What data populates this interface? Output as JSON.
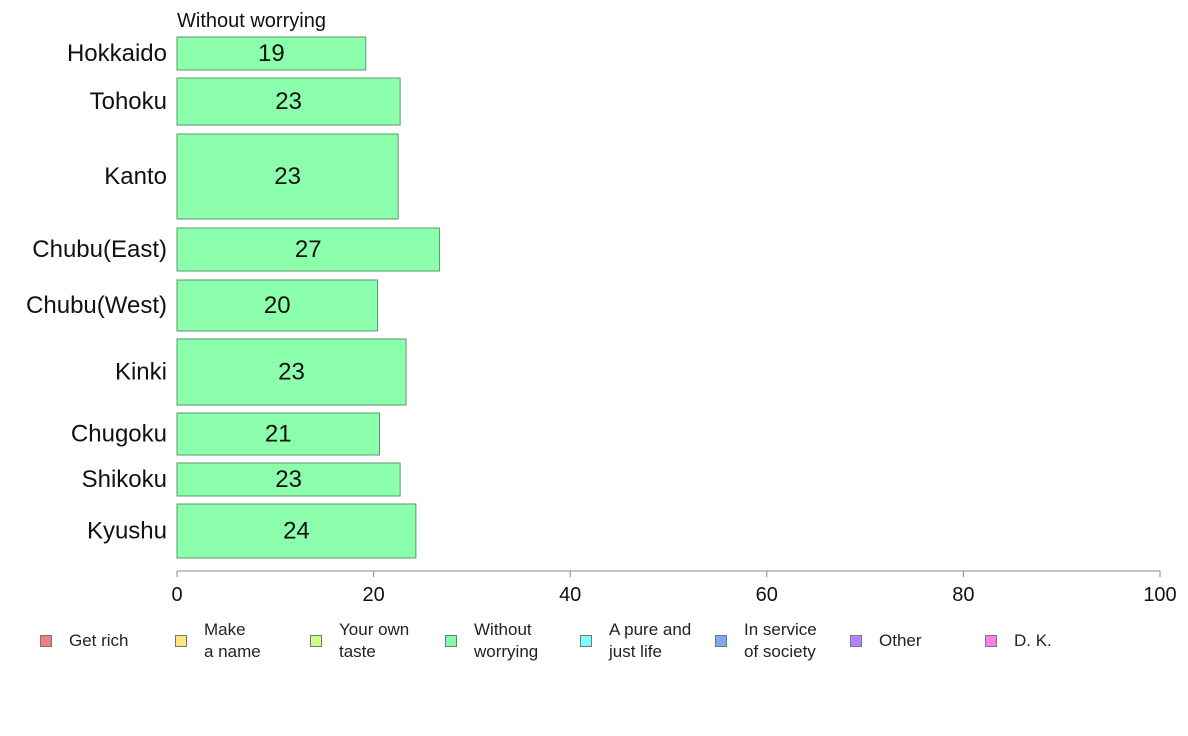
{
  "chart_data": {
    "type": "bar",
    "orientation": "horizontal",
    "panel_label": "Without worrying",
    "categories": [
      "Hokkaido",
      "Tohoku",
      "Kanto",
      "Chubu(East)",
      "Chubu(West)",
      "Kinki",
      "Chugoku",
      "Shikoku",
      "Kyushu"
    ],
    "values": [
      19.2,
      22.7,
      22.5,
      26.7,
      20.4,
      23.3,
      20.6,
      22.7,
      24.3
    ],
    "value_labels": [
      "19",
      "23",
      "23",
      "27",
      "20",
      "23",
      "21",
      "23",
      "24"
    ],
    "bar_color": "#8cffac",
    "xlim": [
      0,
      100
    ],
    "xticks": [
      "0",
      "20",
      "40",
      "60",
      "80",
      "100"
    ],
    "grid": false,
    "legend_position": "bottom",
    "legend": [
      {
        "label": "Get rich",
        "color": "#f08080"
      },
      {
        "label": "Make\na name",
        "color": "#ffe680"
      },
      {
        "label": "Your own\ntaste",
        "color": "#ccff80"
      },
      {
        "label": "Without\nworrying",
        "color": "#80ffaa"
      },
      {
        "label": "A pure and\njust life",
        "color": "#80ffff"
      },
      {
        "label": "In service\nof society",
        "color": "#80aaf0"
      },
      {
        "label": "Other",
        "color": "#b380ff"
      },
      {
        "label": "D. K.",
        "color": "#ff80e6"
      }
    ]
  }
}
